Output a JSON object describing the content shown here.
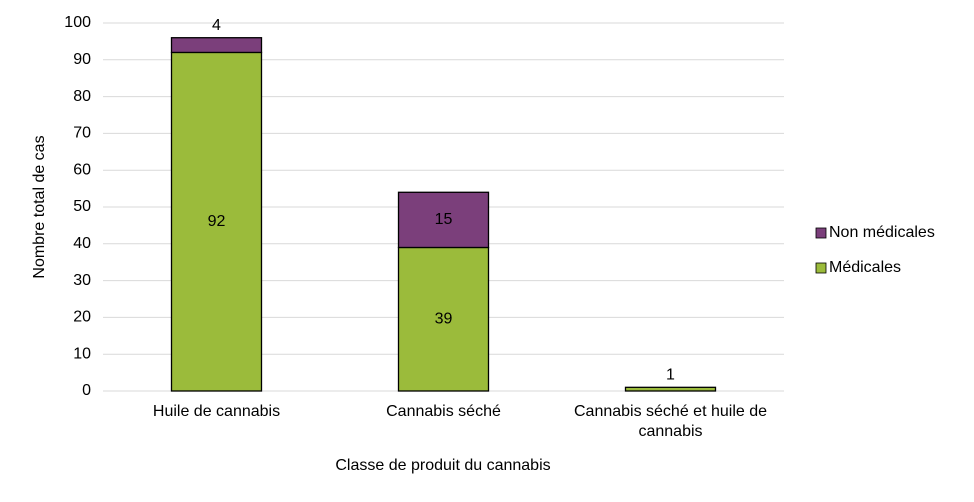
{
  "chart_data": {
    "type": "stacked-bar",
    "categories": [
      "Huile de cannabis",
      "Cannabis séché",
      "Cannabis séché et huile de cannabis"
    ],
    "series": [
      {
        "name": "Médicales",
        "color": "#9bbb3b",
        "values": [
          92,
          39,
          1
        ],
        "value_labels": [
          "92",
          "39",
          "1"
        ]
      },
      {
        "name": "Non médicales",
        "color": "#7b3f7b",
        "values": [
          4,
          15,
          0
        ],
        "value_labels": [
          "4",
          "15",
          null
        ]
      }
    ],
    "xlabel": "Classe de produit du cannabis",
    "ylabel": "Nombre total de cas",
    "ylim": [
      0,
      100
    ],
    "yticks": [
      0,
      10,
      20,
      30,
      40,
      50,
      60,
      70,
      80,
      90,
      100
    ],
    "grid": true,
    "legend": "right"
  }
}
